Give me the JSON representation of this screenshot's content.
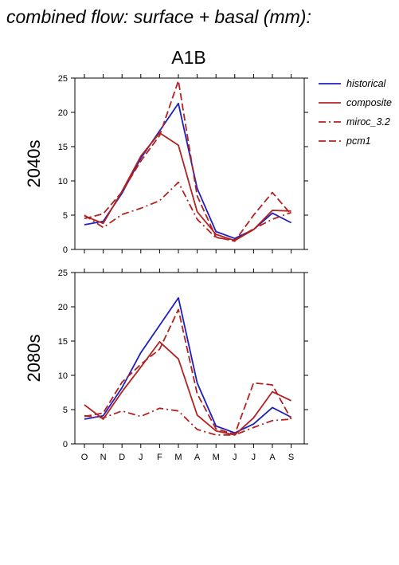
{
  "figure": {
    "suptitle": "combined flow: surface + basal (mm):",
    "panel_title": "A1B"
  },
  "chart_data": [
    {
      "type": "line",
      "row_label": "2040s",
      "categories": [
        "O",
        "N",
        "D",
        "J",
        "F",
        "M",
        "A",
        "M",
        "J",
        "J",
        "A",
        "S"
      ],
      "ylim": [
        0,
        25
      ],
      "yticks": [
        0,
        5,
        10,
        15,
        20,
        25
      ],
      "grid": false,
      "series": [
        {
          "name": "historical",
          "color": "#1f1fbf",
          "dash": "solid",
          "values": [
            3.6,
            4.1,
            8.2,
            13.3,
            17.3,
            21.3,
            8.9,
            2.6,
            1.6,
            2.9,
            5.3,
            3.9
          ]
        },
        {
          "name": "composite",
          "color": "#b22222",
          "dash": "solid",
          "values": [
            4.9,
            3.8,
            8.5,
            13.6,
            17.0,
            15.2,
            5.5,
            2.2,
            1.3,
            2.9,
            5.7,
            5.6
          ]
        },
        {
          "name": "miroc_3.2",
          "color": "#b22222",
          "dash": "dashdot",
          "values": [
            5.0,
            3.2,
            5.1,
            6.0,
            7.1,
            9.8,
            4.4,
            1.7,
            1.4,
            3.0,
            4.4,
            5.4
          ]
        },
        {
          "name": "pcm1",
          "color": "#b22222",
          "dash": "dashed",
          "values": [
            4.5,
            5.2,
            8.4,
            12.9,
            16.6,
            24.6,
            7.8,
            1.8,
            1.2,
            5.0,
            8.3,
            5.1
          ]
        }
      ]
    },
    {
      "type": "line",
      "row_label": "2080s",
      "categories": [
        "O",
        "N",
        "D",
        "J",
        "F",
        "M",
        "A",
        "M",
        "J",
        "J",
        "A",
        "S"
      ],
      "ylim": [
        0,
        25
      ],
      "yticks": [
        0,
        5,
        10,
        15,
        20,
        25
      ],
      "grid": false,
      "series": [
        {
          "name": "historical",
          "color": "#1f1fbf",
          "dash": "solid",
          "values": [
            3.6,
            4.1,
            8.2,
            13.3,
            17.3,
            21.3,
            8.9,
            2.6,
            1.6,
            2.9,
            5.3,
            3.9
          ]
        },
        {
          "name": "composite",
          "color": "#b22222",
          "dash": "solid",
          "values": [
            5.7,
            3.6,
            7.6,
            11.2,
            14.9,
            12.4,
            4.2,
            1.9,
            1.3,
            3.8,
            7.6,
            6.3
          ]
        },
        {
          "name": "miroc_3.2",
          "color": "#b22222",
          "dash": "dashdot",
          "values": [
            4.1,
            3.8,
            4.8,
            4.0,
            5.2,
            4.8,
            2.1,
            1.3,
            1.3,
            2.4,
            3.4,
            3.6
          ]
        },
        {
          "name": "pcm1",
          "color": "#b22222",
          "dash": "dashed",
          "values": [
            4.0,
            4.5,
            9.0,
            11.6,
            13.8,
            19.6,
            7.3,
            2.2,
            1.4,
            8.9,
            8.6,
            3.6
          ]
        }
      ]
    }
  ]
}
